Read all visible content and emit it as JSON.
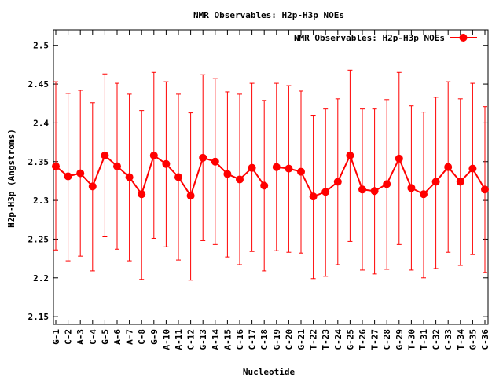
{
  "chart_data": {
    "type": "line",
    "title": "NMR Observables: H2p-H3p NOEs",
    "xlabel": "Nucleotide",
    "ylabel": "H2p-H3p (Angstroms)",
    "ylim": [
      2.14,
      2.52
    ],
    "yticks": [
      "2.15",
      "2.2",
      "2.25",
      "2.3",
      "2.35",
      "2.4",
      "2.45",
      "2.5"
    ],
    "ytick_values": [
      2.15,
      2.2,
      2.25,
      2.3,
      2.35,
      2.4,
      2.45,
      2.5
    ],
    "grid": false,
    "legend_position": "top-right",
    "color": "#ff0000",
    "categories": [
      "G-1",
      "C-2",
      "A-3",
      "C-4",
      "G-5",
      "A-6",
      "A-7",
      "C-8",
      "G-9",
      "A-10",
      "A-11",
      "C-12",
      "G-13",
      "A-14",
      "A-15",
      "C-16",
      "C-17",
      "C-18",
      "G-19",
      "C-20",
      "G-21",
      "T-22",
      "T-23",
      "C-24",
      "G-25",
      "T-26",
      "T-27",
      "C-28",
      "G-29",
      "T-30",
      "T-31",
      "C-32",
      "C-33",
      "T-34",
      "G-35",
      "C-36"
    ],
    "series": [
      {
        "name": "NMR Observables: H2p-H3p NOEs",
        "segments": [
          [
            0,
            17
          ],
          [
            18,
            35
          ]
        ],
        "values": [
          2.344,
          2.331,
          2.335,
          2.318,
          2.358,
          2.344,
          2.33,
          2.308,
          2.358,
          2.347,
          2.33,
          2.306,
          2.355,
          2.35,
          2.334,
          2.327,
          2.342,
          2.319,
          2.343,
          2.341,
          2.337,
          2.305,
          2.311,
          2.324,
          2.358,
          2.314,
          2.312,
          2.321,
          2.354,
          2.316,
          2.308,
          2.324,
          2.343,
          2.324,
          2.341,
          2.314
        ],
        "err_low": [
          2.236,
          2.222,
          2.228,
          2.209,
          2.253,
          2.237,
          2.222,
          2.198,
          2.251,
          2.24,
          2.223,
          2.197,
          2.248,
          2.243,
          2.227,
          2.217,
          2.234,
          2.209,
          2.235,
          2.233,
          2.232,
          2.199,
          2.202,
          2.217,
          2.247,
          2.21,
          2.205,
          2.211,
          2.243,
          2.21,
          2.2,
          2.212,
          2.233,
          2.216,
          2.23,
          2.207
        ],
        "err_high": [
          2.453,
          2.438,
          2.442,
          2.426,
          2.463,
          2.451,
          2.437,
          2.416,
          2.465,
          2.453,
          2.437,
          2.413,
          2.462,
          2.457,
          2.44,
          2.437,
          2.451,
          2.429,
          2.451,
          2.448,
          2.441,
          2.409,
          2.418,
          2.431,
          2.468,
          2.418,
          2.418,
          2.43,
          2.465,
          2.422,
          2.414,
          2.433,
          2.453,
          2.431,
          2.451,
          2.421
        ]
      }
    ]
  }
}
